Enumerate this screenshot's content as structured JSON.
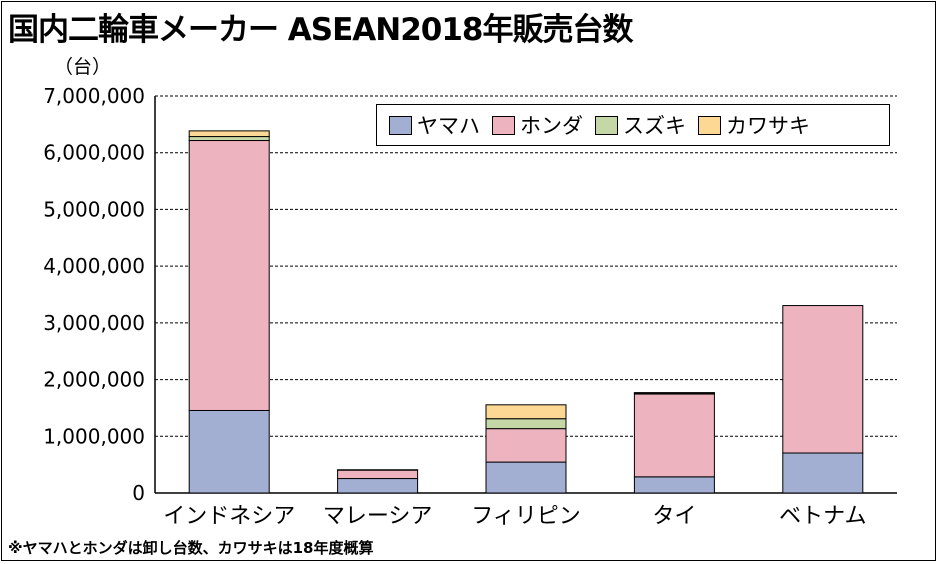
{
  "title": "国内二輪車メーカー ASEAN2018年販売台数",
  "unit_label": "（台）",
  "footnote": "※ヤマハとホンダは卸し台数、カワサキは18年度概算",
  "chart_data": {
    "type": "bar",
    "stacked": true,
    "categories": [
      "インドネシア",
      "マレーシア",
      "フィリピン",
      "タイ",
      "ベトナム"
    ],
    "series": [
      {
        "name": "ヤマハ",
        "color": "#a3aed3",
        "values": [
          1455000,
          255000,
          545000,
          285000,
          705000
        ]
      },
      {
        "name": "ホンダ",
        "color": "#edb3bf",
        "values": [
          4760000,
          150000,
          590000,
          1460000,
          2600000
        ]
      },
      {
        "name": "スズキ",
        "color": "#c5d7a6",
        "values": [
          70000,
          5000,
          175000,
          20000,
          0
        ]
      },
      {
        "name": "カワサキ",
        "color": "#fcd894",
        "values": [
          100000,
          0,
          245000,
          5000,
          0
        ]
      }
    ],
    "ylim": [
      0,
      7000000
    ],
    "yticks": [
      0,
      1000000,
      2000000,
      3000000,
      4000000,
      5000000,
      6000000,
      7000000
    ],
    "ytick_labels": [
      "0",
      "1,000,000",
      "2,000,000",
      "3,000,000",
      "4,000,000",
      "5,000,000",
      "6,000,000",
      "7,000,000"
    ],
    "grid": true,
    "legend_position": "top-right"
  }
}
